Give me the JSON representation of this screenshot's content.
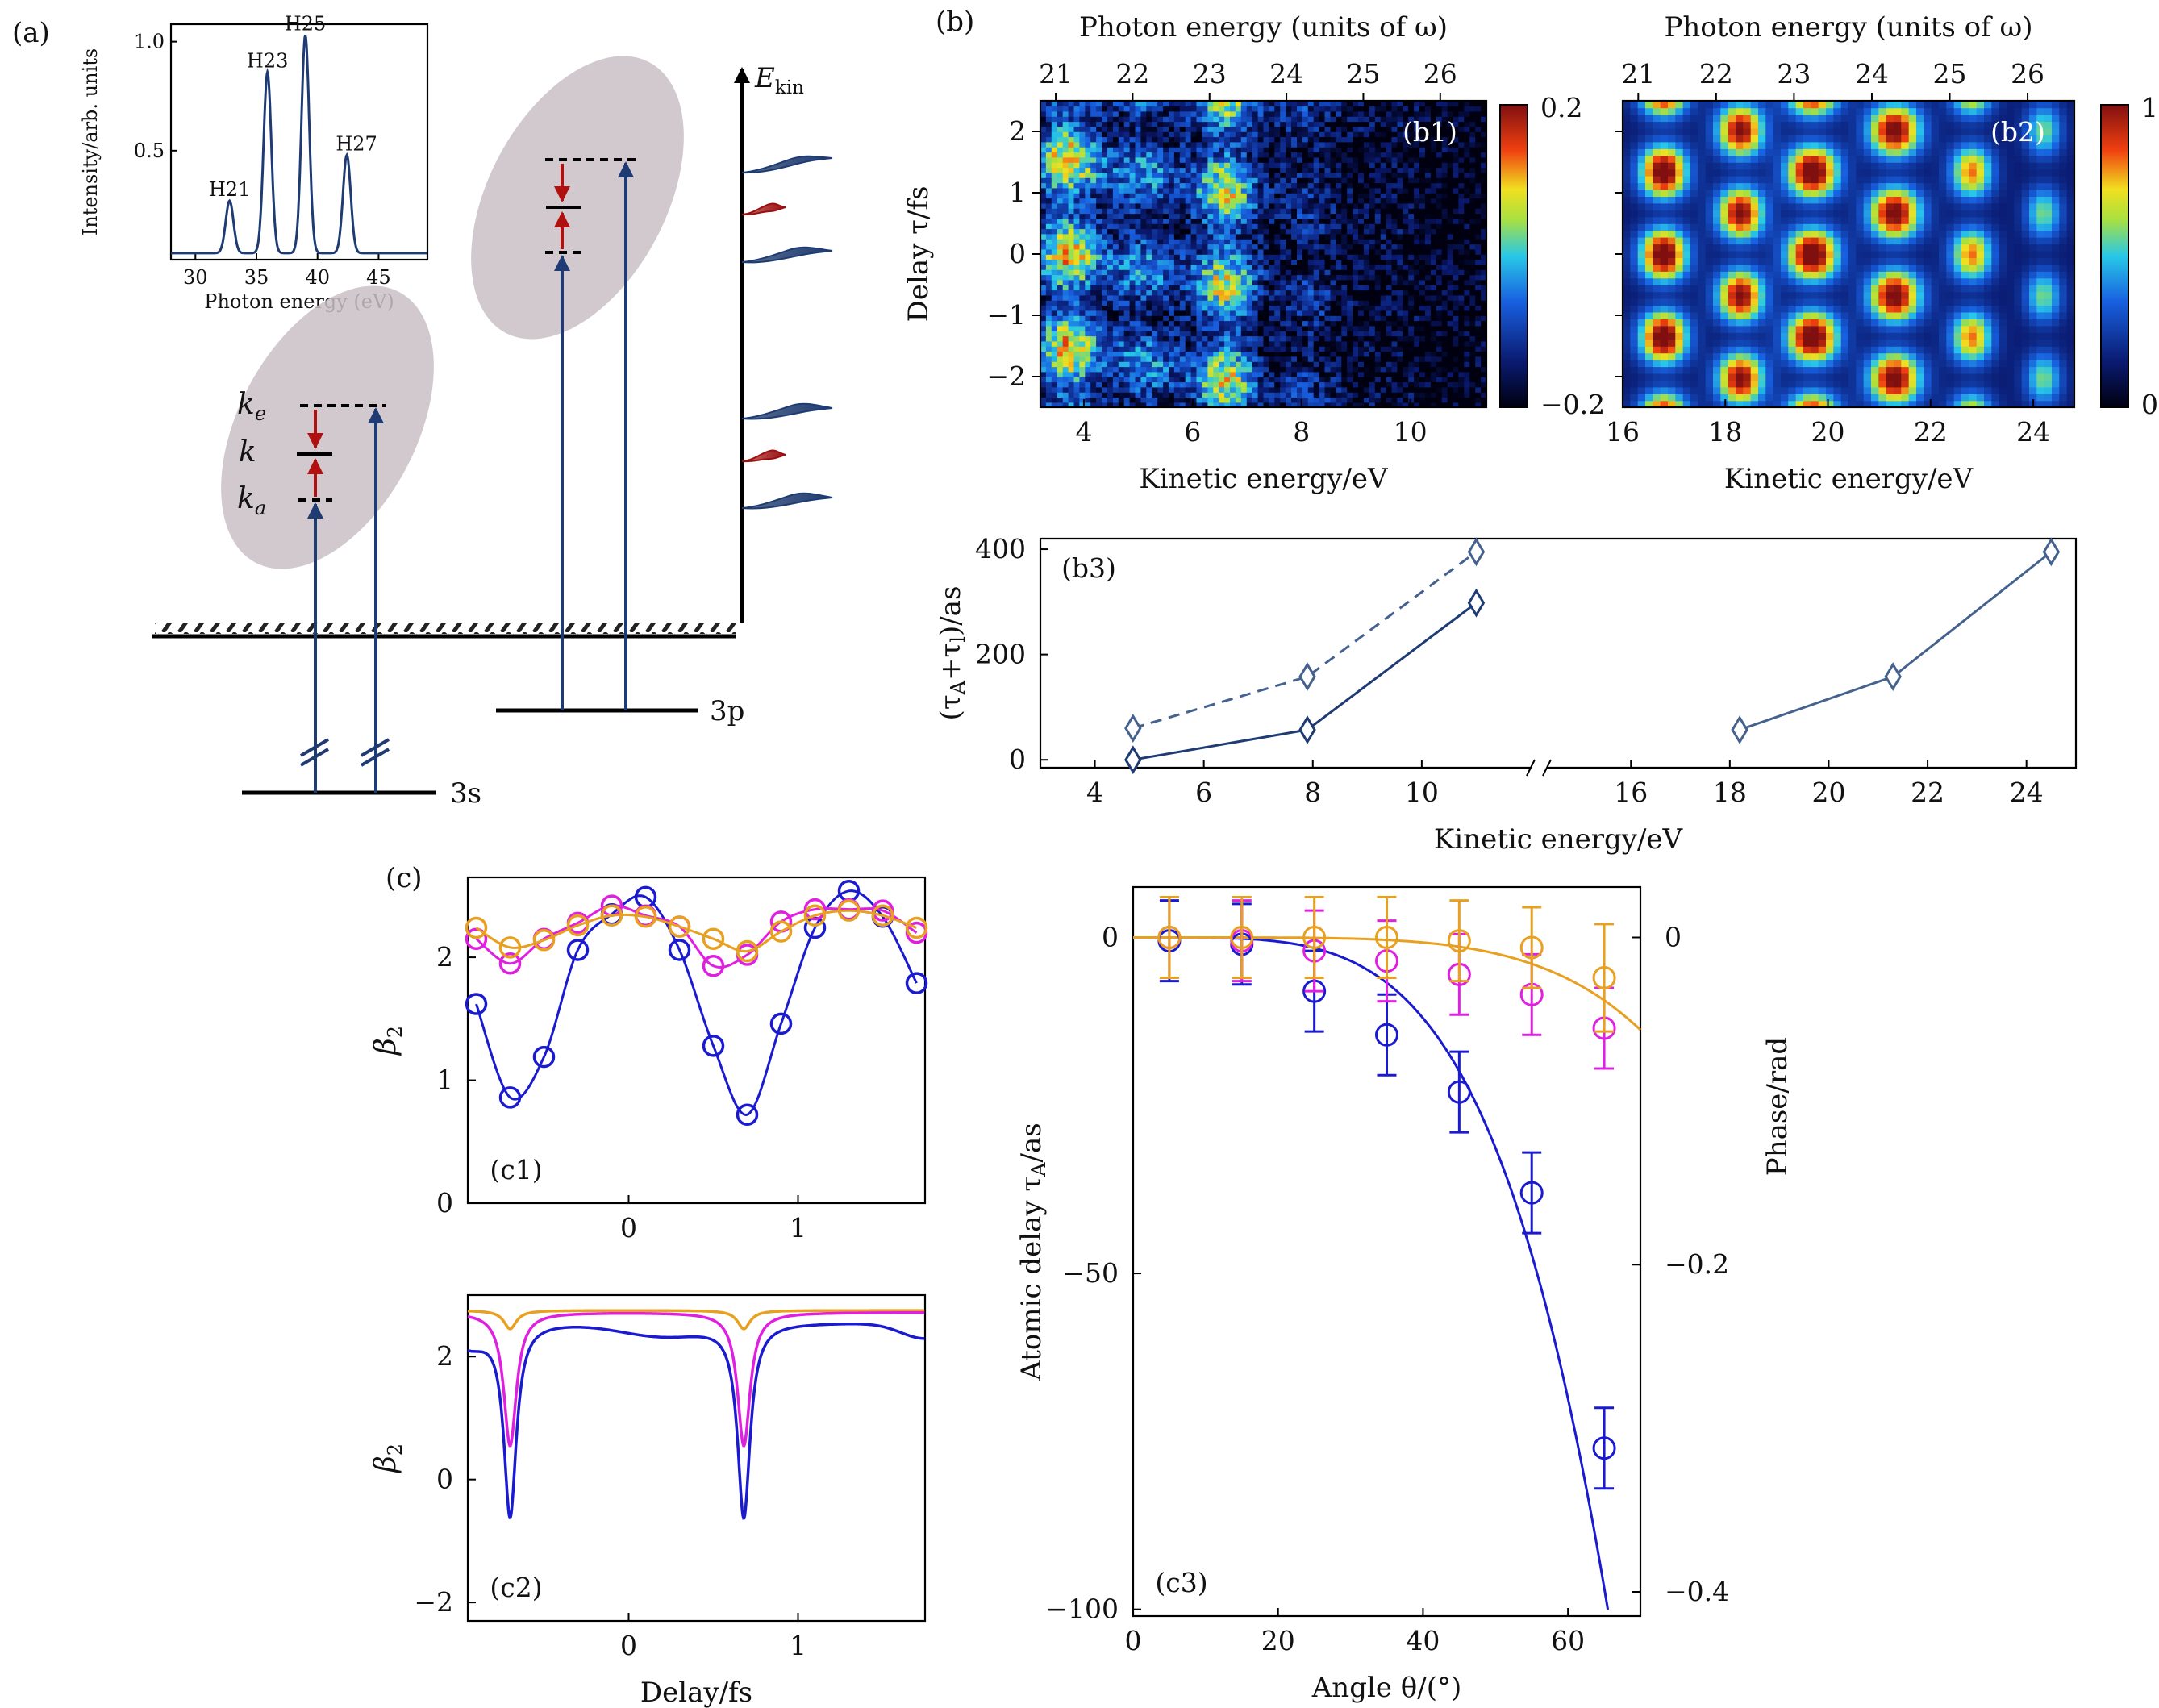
{
  "panel_labels": {
    "a": "(a)",
    "b": "(b)",
    "c": "(c)",
    "b1": "(b1)",
    "b2": "(b2)",
    "b3": "(b3)",
    "c1": "(c1)",
    "c2": "(c2)",
    "c3": "(c3)"
  },
  "colors": {
    "navy": "#1f3b73",
    "steel": "#45628f",
    "red": "#b01010",
    "blue": "#1a1ad0",
    "magenta": "#e020e0",
    "orange": "#e8a020",
    "grey_ellipse": "#c9bfc4"
  },
  "diagram": {
    "level_3s": "3s",
    "level_3p": "3p",
    "k_e": "k_e",
    "k": "k",
    "k_a": "k_a",
    "ekin_label": "E_kin"
  },
  "chart_data": [
    {
      "id": "inset-spectrum",
      "type": "line",
      "xlabel": "Photon energy (eV)",
      "ylabel": "Intensity/arb. units",
      "xlim": [
        28,
        49
      ],
      "ylim": [
        0,
        1.08
      ],
      "xticks": [
        30,
        35,
        40,
        45
      ],
      "yticks": [
        0.5,
        1.0
      ],
      "ytick_labels": [
        "0.5",
        "1.0"
      ],
      "peaks": [
        {
          "label": "H21",
          "x": 32.8,
          "y": 0.24
        },
        {
          "label": "H23",
          "x": 35.9,
          "y": 0.83
        },
        {
          "label": "H25",
          "x": 39.0,
          "y": 1.0
        },
        {
          "label": "H27",
          "x": 42.4,
          "y": 0.45
        }
      ]
    },
    {
      "id": "b1",
      "type": "heatmap",
      "title": "Photon energy (units of ω)",
      "xlabel": "Kinetic energy/eV",
      "ylabel": "Delay τ/fs",
      "xlim": [
        3.2,
        11.4
      ],
      "ylim": [
        -2.5,
        2.5
      ],
      "xticks": [
        4,
        6,
        8,
        10
      ],
      "yticks": [
        -2,
        -1,
        0,
        1,
        2
      ],
      "ytick_labels": [
        "−2",
        "−1",
        "0",
        "1",
        "2"
      ],
      "top_ticks": [
        21,
        22,
        23,
        24,
        25,
        26
      ],
      "colorbar": {
        "min": -0.2,
        "max": 0.2,
        "labels": [
          "0.2",
          "−0.2"
        ]
      },
      "bands": [
        {
          "x": 3.7,
          "w": 0.6,
          "amp": 1.0
        },
        {
          "x": 5.1,
          "w": 0.7,
          "amp": 0.55
        },
        {
          "x": 6.6,
          "w": 0.6,
          "amp": 0.9
        },
        {
          "x": 8.1,
          "w": 0.6,
          "amp": 0.3
        },
        {
          "x": 9.6,
          "w": 0.6,
          "amp": 0.1
        }
      ]
    },
    {
      "id": "b2",
      "type": "heatmap",
      "title": "Photon energy (units of ω)",
      "xlabel": "Kinetic energy/eV",
      "xlim": [
        16,
        24.8
      ],
      "ylim": [
        -2.5,
        2.5
      ],
      "xticks": [
        16,
        18,
        20,
        22,
        24
      ],
      "yticks": [
        -2,
        -1,
        0,
        1,
        2
      ],
      "top_ticks": [
        21,
        22,
        23,
        24,
        25,
        26
      ],
      "colorbar": {
        "min": 0,
        "max": 1,
        "labels": [
          "1",
          "0"
        ]
      },
      "bands": [
        {
          "x": 16.8,
          "w": 0.45,
          "amp": 1.0
        },
        {
          "x": 18.3,
          "w": 0.45,
          "amp": 0.92
        },
        {
          "x": 19.7,
          "w": 0.5,
          "amp": 1.0
        },
        {
          "x": 21.3,
          "w": 0.5,
          "amp": 0.95
        },
        {
          "x": 22.8,
          "w": 0.4,
          "amp": 0.7
        },
        {
          "x": 24.2,
          "w": 0.35,
          "amp": 0.45
        }
      ]
    },
    {
      "id": "b3",
      "type": "line",
      "xlabel": "Kinetic energy/eV",
      "ylabel": "(τ_A+τ_l)/as",
      "ylim": [
        -15,
        420
      ],
      "yticks": [
        0,
        200,
        400
      ],
      "xticks_left": [
        4,
        6,
        8,
        10
      ],
      "xticks_right": [
        16,
        18,
        20,
        22,
        24
      ],
      "series": [
        {
          "style": "dashed",
          "x": [
            4.7,
            7.9,
            11.0
          ],
          "y": [
            60,
            158,
            395
          ]
        },
        {
          "style": "solid",
          "x": [
            4.7,
            7.9,
            11.0
          ],
          "y": [
            0,
            57,
            298
          ]
        },
        {
          "style": "solid-light",
          "x": [
            18.2,
            21.3,
            24.5
          ],
          "y": [
            57,
            158,
            395
          ]
        }
      ]
    },
    {
      "id": "c1",
      "type": "line",
      "ylabel": "β_2",
      "xlim": [
        -0.95,
        1.75
      ],
      "ylim": [
        0,
        2.65
      ],
      "xticks": [
        0,
        1
      ],
      "yticks": [
        0,
        1,
        2
      ],
      "series": [
        {
          "color": "blue",
          "x": [
            -0.9,
            -0.7,
            -0.5,
            -0.3,
            -0.1,
            0.1,
            0.3,
            0.5,
            0.7,
            0.9,
            1.1,
            1.3,
            1.5,
            1.7
          ],
          "y": [
            1.62,
            0.86,
            1.19,
            2.06,
            2.35,
            2.49,
            2.06,
            1.28,
            0.72,
            1.46,
            2.24,
            2.54,
            2.33,
            1.79
          ]
        },
        {
          "color": "magenta",
          "x": [
            -0.9,
            -0.7,
            -0.5,
            -0.3,
            -0.1,
            0.1,
            0.3,
            0.5,
            0.7,
            0.9,
            1.1,
            1.3,
            1.5,
            1.7
          ],
          "y": [
            2.15,
            1.95,
            2.15,
            2.28,
            2.42,
            2.34,
            2.25,
            1.93,
            2.02,
            2.29,
            2.39,
            2.39,
            2.38,
            2.2
          ]
        },
        {
          "color": "orange",
          "x": [
            -0.9,
            -0.7,
            -0.5,
            -0.3,
            -0.1,
            0.1,
            0.3,
            0.5,
            0.7,
            0.9,
            1.1,
            1.3,
            1.5,
            1.7
          ],
          "y": [
            2.24,
            2.08,
            2.14,
            2.26,
            2.34,
            2.33,
            2.25,
            2.15,
            2.05,
            2.21,
            2.34,
            2.38,
            2.34,
            2.24
          ]
        }
      ]
    },
    {
      "id": "c2",
      "type": "line",
      "xlabel": "Delay/fs",
      "ylabel": "β_2",
      "xlim": [
        -0.95,
        1.75
      ],
      "ylim": [
        -2.3,
        3.0
      ],
      "xticks": [
        0,
        1
      ],
      "yticks": [
        -2,
        0,
        2
      ],
      "ytick_labels": [
        "−2",
        "0",
        "2"
      ],
      "dips": [
        -0.7,
        0.68
      ],
      "series": [
        {
          "color": "orange",
          "baseline": 2.75,
          "min": 2.45
        },
        {
          "color": "magenta",
          "baseline": 2.72,
          "min": 0.55
        },
        {
          "color": "blue",
          "baseline": 2.55,
          "min": -0.6
        }
      ]
    },
    {
      "id": "c3",
      "type": "scatter",
      "xlabel": "Angle θ/(°)",
      "ylabel": "Atomic delay τ_A/as",
      "ylabel_right": "Phase/rad",
      "xlim": [
        0,
        70
      ],
      "ylim": [
        -101,
        7.5
      ],
      "xticks": [
        0,
        20,
        40,
        60
      ],
      "yticks": [
        0,
        -50,
        -100
      ],
      "ytick_labels": [
        "0",
        "−50",
        "−100"
      ],
      "right_ticks": [
        0,
        -0.2,
        -0.4
      ],
      "right_tick_labels": [
        "0",
        "−0.2",
        "−0.4"
      ],
      "series": [
        {
          "color": "blue",
          "x": [
            5,
            15,
            25,
            35,
            45,
            55,
            65
          ],
          "y": [
            -0.5,
            -1,
            -8,
            -14.5,
            -23,
            -38,
            -76
          ],
          "err": [
            6,
            6,
            6,
            6,
            6,
            6,
            6
          ]
        },
        {
          "color": "magenta",
          "x": [
            5,
            15,
            25,
            35,
            45,
            55,
            65
          ],
          "y": [
            0,
            -0.5,
            -2,
            -3.5,
            -5.5,
            -8.5,
            -13.5
          ],
          "err": [
            6,
            6,
            6,
            6,
            6,
            6,
            6
          ]
        },
        {
          "color": "orange",
          "x": [
            5,
            15,
            25,
            35,
            45,
            55,
            65
          ],
          "y": [
            0,
            0,
            0,
            0,
            -0.5,
            -1.5,
            -6
          ],
          "err": [
            6,
            6,
            6,
            6,
            6,
            6,
            8
          ]
        }
      ]
    }
  ]
}
